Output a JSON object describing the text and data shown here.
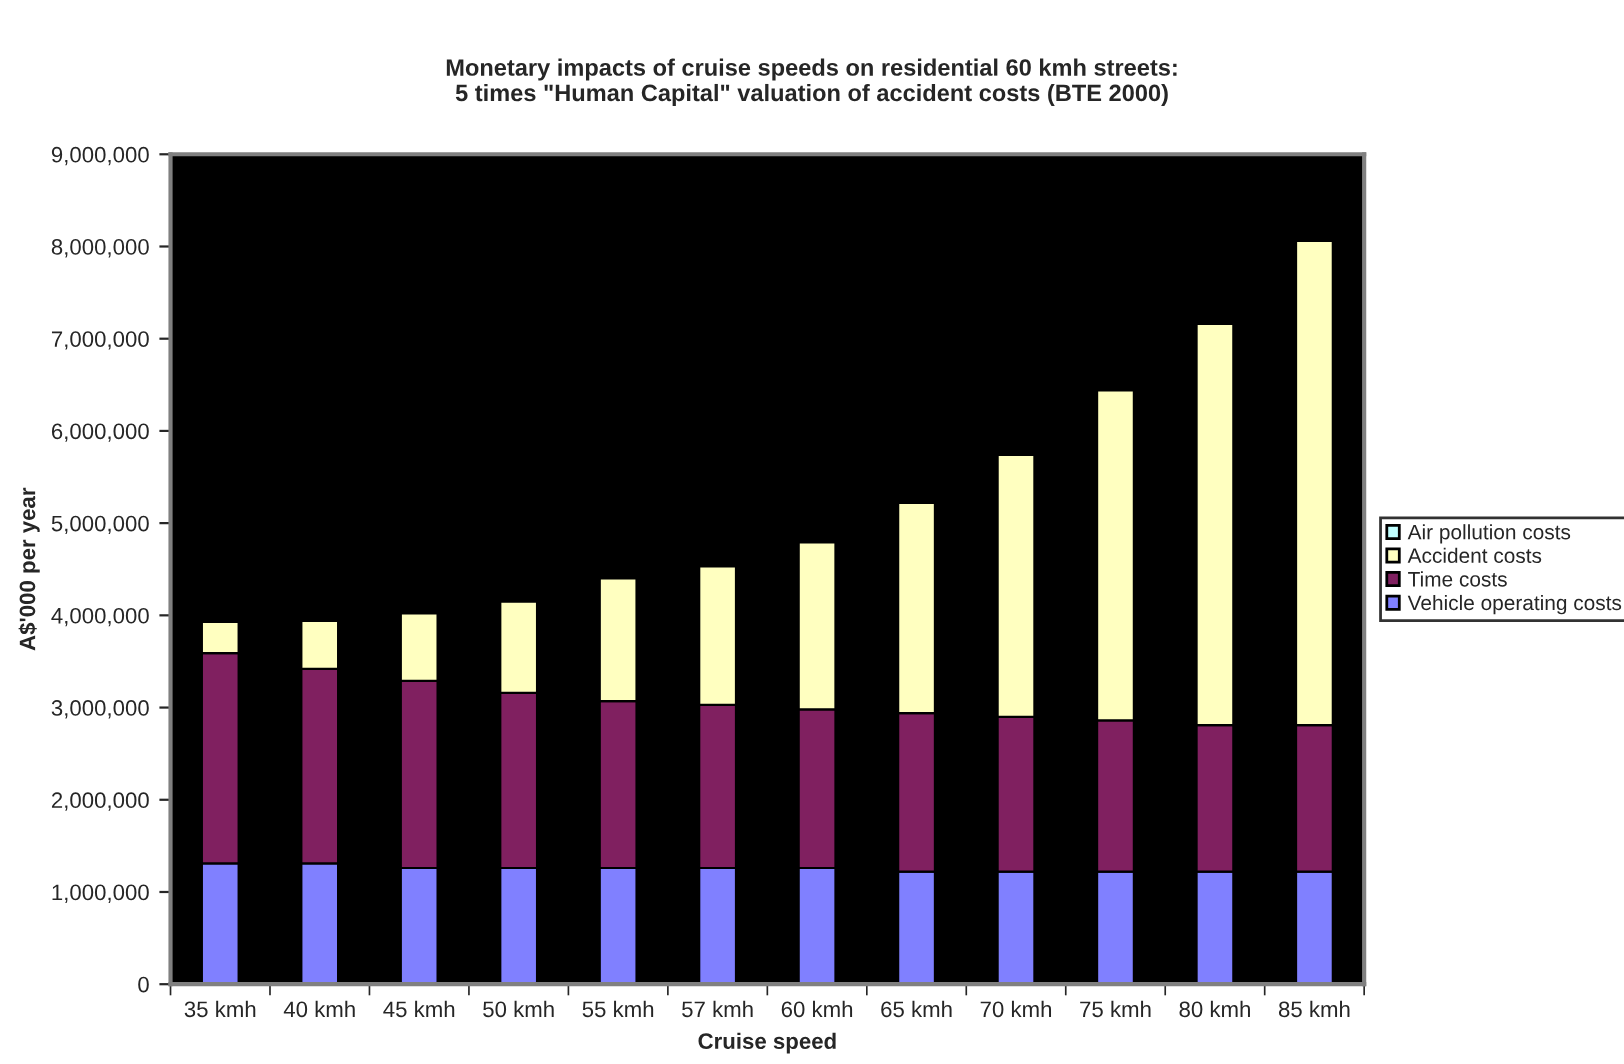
{
  "chart_data": {
    "type": "bar",
    "stacked": true,
    "title": "Monetary impacts of cruise speeds on residential 60 kmh streets:\n5 times \"Human Capital\" valuation of accident costs (BTE 2000)",
    "xlabel": "Cruise speed",
    "ylabel": "A$'000 per year",
    "categories": [
      "35 kmh",
      "40 kmh",
      "45 kmh",
      "50 kmh",
      "55 kmh",
      "57 kmh",
      "60 kmh",
      "65 kmh",
      "70 kmh",
      "75 kmh",
      "80 kmh",
      "85 kmh"
    ],
    "series": [
      {
        "name": "Vehicle operating costs",
        "color": "#8080ff",
        "values": [
          1310000,
          1310000,
          1260000,
          1260000,
          1260000,
          1260000,
          1260000,
          1220000,
          1220000,
          1220000,
          1220000,
          1220000
        ]
      },
      {
        "name": "Time costs",
        "color": "#802060",
        "values": [
          2280000,
          2110000,
          2030000,
          1900000,
          1810000,
          1770000,
          1720000,
          1720000,
          1680000,
          1640000,
          1590000,
          1590000
        ]
      },
      {
        "name": "Accident costs",
        "color": "#ffffc0",
        "values": [
          340000,
          520000,
          730000,
          990000,
          1330000,
          1500000,
          1810000,
          2280000,
          2840000,
          3580000,
          4350000,
          5250000
        ]
      },
      {
        "name": "Air pollution costs",
        "color": "#c0ffff",
        "values": [
          null,
          null,
          null,
          null,
          null,
          null,
          null,
          null,
          null,
          null,
          null,
          null
        ]
      }
    ],
    "ylim": [
      0,
      9000000
    ],
    "yticks": [
      {
        "value": 0,
        "label": "0"
      },
      {
        "value": 1000000,
        "label": "1,000,000"
      },
      {
        "value": 2000000,
        "label": "2,000,000"
      },
      {
        "value": 3000000,
        "label": "3,000,000"
      },
      {
        "value": 4000000,
        "label": "4,000,000"
      },
      {
        "value": 5000000,
        "label": "5,000,000"
      },
      {
        "value": 6000000,
        "label": "6,000,000"
      },
      {
        "value": 7000000,
        "label": "7,000,000"
      },
      {
        "value": 8000000,
        "label": "8,000,000"
      },
      {
        "value": 9000000,
        "label": "9,000,000"
      }
    ],
    "grid": false,
    "legend": "right"
  }
}
